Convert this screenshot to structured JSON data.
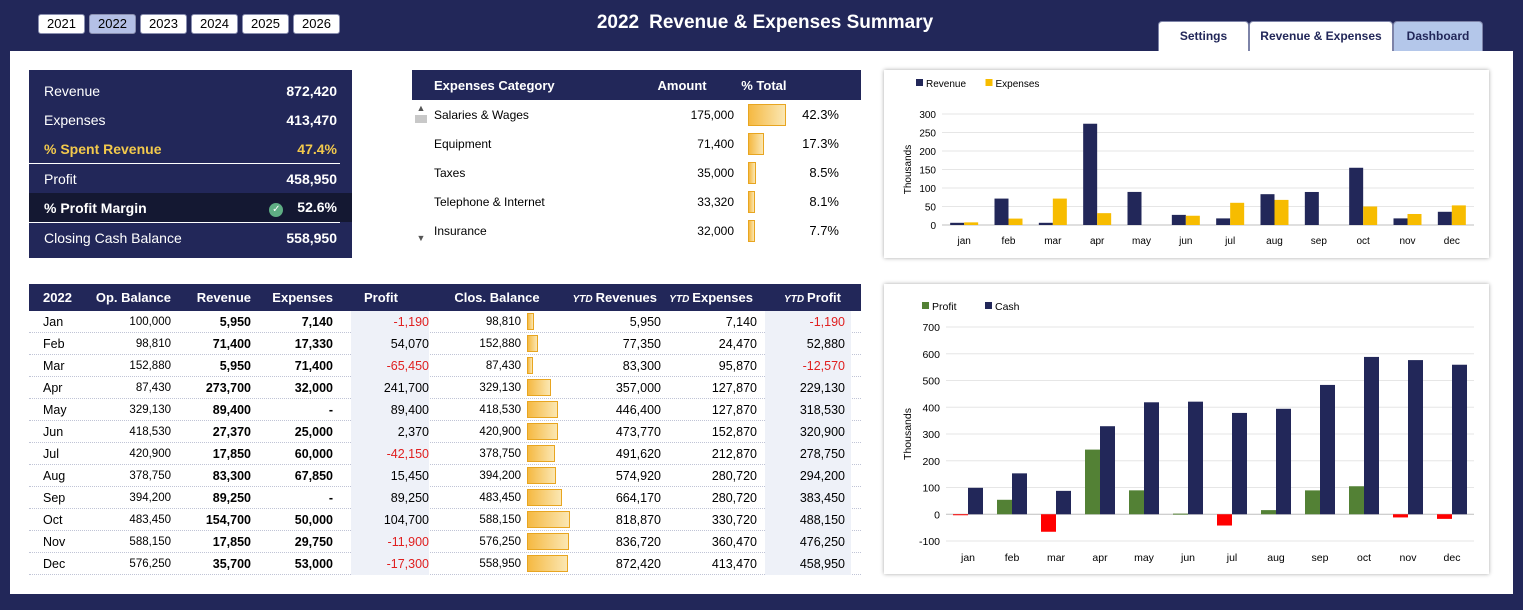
{
  "years": [
    "2021",
    "2022",
    "2023",
    "2024",
    "2025",
    "2026"
  ],
  "selected_year": "2022",
  "title": {
    "year": "2022",
    "text": "Revenue & Expenses Summary"
  },
  "tabs": [
    "Settings",
    "Revenue & Expenses",
    "Dashboard"
  ],
  "active_tab": "Dashboard",
  "kpi": {
    "revenue_label": "Revenue",
    "revenue": "872,420",
    "expenses_label": "Expenses",
    "expenses": "413,470",
    "spent_label": "% Spent Revenue",
    "spent": "47.4%",
    "profit_label": "Profit",
    "profit": "458,950",
    "margin_label": "% Profit Margin",
    "margin": "52.6%",
    "cash_label": "Closing Cash Balance",
    "cash": "558,950"
  },
  "expenses_table": {
    "headers": [
      "Expenses Category",
      "Amount",
      "% Total"
    ],
    "rows": [
      {
        "category": "Salaries & Wages",
        "amount": "175,000",
        "pct": "42.3%",
        "share": 42.3
      },
      {
        "category": "Equipment",
        "amount": "71,400",
        "pct": "17.3%",
        "share": 17.3
      },
      {
        "category": "Taxes",
        "amount": "35,000",
        "pct": "8.5%",
        "share": 8.5
      },
      {
        "category": "Telephone & Internet",
        "amount": "33,320",
        "pct": "8.1%",
        "share": 8.1
      },
      {
        "category": "Insurance",
        "amount": "32,000",
        "pct": "7.7%",
        "share": 7.7
      }
    ]
  },
  "monthly_table": {
    "headers": [
      "2022",
      "Op. Balance",
      "Revenue",
      "Expenses",
      "Profit",
      "Clos. Balance",
      "Revenues",
      "Expenses",
      "Profit"
    ],
    "ytd_prefix": "YTD",
    "rows": [
      {
        "month": "Jan",
        "op": "100,000",
        "rev": "5,950",
        "exp": "7,140",
        "profit": "-1,190",
        "clos": "98,810",
        "clos_value": 98810,
        "ytd_rev": "5,950",
        "ytd_exp": "7,140",
        "ytd_profit": "-1,190"
      },
      {
        "month": "Feb",
        "op": "98,810",
        "rev": "71,400",
        "exp": "17,330",
        "profit": "54,070",
        "clos": "152,880",
        "clos_value": 152880,
        "ytd_rev": "77,350",
        "ytd_exp": "24,470",
        "ytd_profit": "52,880"
      },
      {
        "month": "Mar",
        "op": "152,880",
        "rev": "5,950",
        "exp": "71,400",
        "profit": "-65,450",
        "clos": "87,430",
        "clos_value": 87430,
        "ytd_rev": "83,300",
        "ytd_exp": "95,870",
        "ytd_profit": "-12,570"
      },
      {
        "month": "Apr",
        "op": "87,430",
        "rev": "273,700",
        "exp": "32,000",
        "profit": "241,700",
        "clos": "329,130",
        "clos_value": 329130,
        "ytd_rev": "357,000",
        "ytd_exp": "127,870",
        "ytd_profit": "229,130"
      },
      {
        "month": "May",
        "op": "329,130",
        "rev": "89,400",
        "exp": "-",
        "profit": "89,400",
        "clos": "418,530",
        "clos_value": 418530,
        "ytd_rev": "446,400",
        "ytd_exp": "127,870",
        "ytd_profit": "318,530"
      },
      {
        "month": "Jun",
        "op": "418,530",
        "rev": "27,370",
        "exp": "25,000",
        "profit": "2,370",
        "clos": "420,900",
        "clos_value": 420900,
        "ytd_rev": "473,770",
        "ytd_exp": "152,870",
        "ytd_profit": "320,900"
      },
      {
        "month": "Jul",
        "op": "420,900",
        "rev": "17,850",
        "exp": "60,000",
        "profit": "-42,150",
        "clos": "378,750",
        "clos_value": 378750,
        "ytd_rev": "491,620",
        "ytd_exp": "212,870",
        "ytd_profit": "278,750"
      },
      {
        "month": "Aug",
        "op": "378,750",
        "rev": "83,300",
        "exp": "67,850",
        "profit": "15,450",
        "clos": "394,200",
        "clos_value": 394200,
        "ytd_rev": "574,920",
        "ytd_exp": "280,720",
        "ytd_profit": "294,200"
      },
      {
        "month": "Sep",
        "op": "394,200",
        "rev": "89,250",
        "exp": "-",
        "profit": "89,250",
        "clos": "483,450",
        "clos_value": 483450,
        "ytd_rev": "664,170",
        "ytd_exp": "280,720",
        "ytd_profit": "383,450"
      },
      {
        "month": "Oct",
        "op": "483,450",
        "rev": "154,700",
        "exp": "50,000",
        "profit": "104,700",
        "clos": "588,150",
        "clos_value": 588150,
        "ytd_rev": "818,870",
        "ytd_exp": "330,720",
        "ytd_profit": "488,150"
      },
      {
        "month": "Nov",
        "op": "588,150",
        "rev": "17,850",
        "exp": "29,750",
        "profit": "-11,900",
        "clos": "576,250",
        "clos_value": 576250,
        "ytd_rev": "836,720",
        "ytd_exp": "360,470",
        "ytd_profit": "476,250"
      },
      {
        "month": "Dec",
        "op": "576,250",
        "rev": "35,700",
        "exp": "53,000",
        "profit": "-17,300",
        "clos": "558,950",
        "clos_value": 558950,
        "ytd_rev": "872,420",
        "ytd_exp": "413,470",
        "ytd_profit": "458,950"
      }
    ]
  },
  "colors": {
    "navy": "#222759",
    "gold": "#f7bc00",
    "green": "#538135",
    "red": "#ff0000"
  },
  "chart_data": [
    {
      "type": "bar",
      "categories": [
        "jan",
        "feb",
        "mar",
        "apr",
        "may",
        "jun",
        "jul",
        "aug",
        "sep",
        "oct",
        "nov",
        "dec"
      ],
      "series": [
        {
          "name": "Revenue",
          "color": "#222759",
          "values": [
            5.95,
            71.4,
            5.95,
            273.7,
            89.4,
            27.37,
            17.85,
            83.3,
            89.25,
            154.7,
            17.85,
            35.7
          ]
        },
        {
          "name": "Expenses",
          "color": "#f7bc00",
          "values": [
            7.14,
            17.33,
            71.4,
            32.0,
            0,
            25.0,
            60.0,
            67.85,
            0,
            50.0,
            29.75,
            53.0
          ]
        }
      ],
      "ylabel": "Thousands",
      "ylim": [
        0,
        300
      ],
      "yticks": [
        0,
        50,
        100,
        150,
        200,
        250,
        300
      ],
      "legend": "top-left"
    },
    {
      "type": "bar",
      "categories": [
        "jan",
        "feb",
        "mar",
        "apr",
        "may",
        "jun",
        "jul",
        "aug",
        "sep",
        "oct",
        "nov",
        "dec"
      ],
      "series": [
        {
          "name": "Profit",
          "color": "#538135",
          "negative_color": "#ff0000",
          "values": [
            -1.19,
            54.07,
            -65.45,
            241.7,
            89.4,
            2.37,
            -42.15,
            15.45,
            89.25,
            104.7,
            -11.9,
            -17.3
          ]
        },
        {
          "name": "Cash",
          "color": "#222759",
          "values": [
            98.81,
            152.88,
            87.43,
            329.13,
            418.53,
            420.9,
            378.75,
            394.2,
            483.45,
            588.15,
            576.25,
            558.95
          ]
        }
      ],
      "ylabel": "Thousands",
      "ylim": [
        -100,
        700
      ],
      "yticks": [
        -100,
        0,
        100,
        200,
        300,
        400,
        500,
        600,
        700
      ],
      "legend": "top-left"
    }
  ]
}
